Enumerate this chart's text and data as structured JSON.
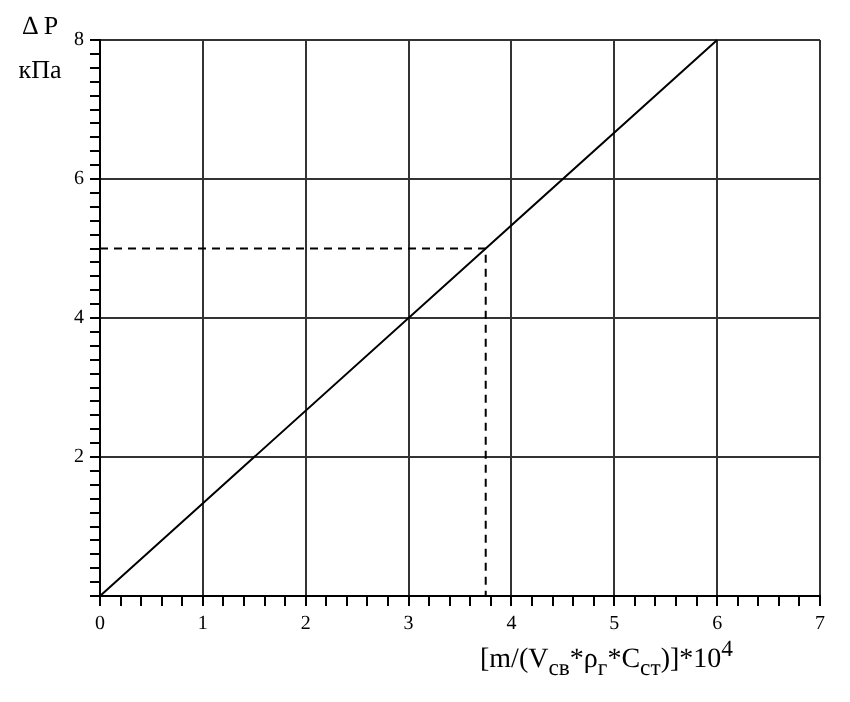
{
  "chart_data": {
    "type": "line",
    "xlabel": "[m/(V$_{св}$*ρ$_{г}$*C$_{ст}$)]*10$^{4}$",
    "ylabel": "Δ P кПа",
    "x": [
      0,
      3.75,
      3.75,
      6
    ],
    "series": [
      {
        "color": "#000000",
        "values": [
          0,
          5,
          5,
          8
        ]
      },
      {
        "color": "#000000",
        "values": [
          5,
          5,
          0,
          null
        ],
        "line_style": "dashed"
      }
    ],
    "xlim": [
      0,
      7
    ],
    "ylim": [
      0,
      8
    ],
    "xticks": [
      0,
      {
        "value": 0.2,
        "label": null
      },
      {
        "value": 0.4,
        "label": null
      },
      {
        "value": 0.6,
        "label": null
      },
      {
        "value": 0.8,
        "label": null
      },
      1,
      {
        "value": 1.2,
        "label": null
      },
      {
        "value": 1.4,
        "label": null
      },
      {
        "value": 1.6,
        "label": null
      },
      {
        "value": 1.8,
        "label": null
      },
      2,
      {
        "value": 2.2,
        "label": null
      },
      {
        "value": 2.4,
        "label": null
      },
      {
        "value": 2.6,
        "label": null
      },
      {
        "value": 2.8,
        "label": null
      },
      3,
      {
        "value": 3.2,
        "label": null
      },
      {
        "value": 3.4,
        "label": null
      },
      {
        "value": 3.6,
        "label": null
      },
      {
        "value": 3.8,
        "label": null
      },
      4,
      {
        "value": 4.2,
        "label": null
      },
      {
        "value": 4.4,
        "label": null
      },
      {
        "value": 4.6,
        "label": null
      },
      {
        "value": 4.8,
        "label": null
      },
      5,
      {
        "value": 5.2,
        "label": null
      },
      {
        "value": 5.4,
        "label": null
      },
      {
        "value": 5.6,
        "label": null
      },
      {
        "value": 5.8,
        "label": null
      },
      6,
      {
        "value": 6.2,
        "label": null
      },
      {
        "value": 6.4,
        "label": null
      },
      {
        "value": 6.6,
        "label": null
      },
      {
        "value": 6.8,
        "label": null
      },
      7
    ],
    "yticks": [
      {
        "value": 0,
        "label": null
      },
      {
        "value": 0.2,
        "label": null
      },
      {
        "value": 0.4,
        "label": null
      },
      {
        "value": 0.6,
        "label": null
      },
      {
        "value": 0.8,
        "label": null
      },
      {
        "value": 1,
        "label": null
      },
      {
        "value": 1.2,
        "label": null
      },
      {
        "value": 1.4,
        "label": null
      },
      {
        "value": 1.6,
        "label": null
      },
      {
        "value": 1.8,
        "label": null
      },
      2,
      {
        "value": 2.2,
        "label": null
      },
      {
        "value": 2.4,
        "label": null
      },
      {
        "value": 2.6,
        "label": null
      },
      {
        "value": 2.8,
        "label": null
      },
      {
        "value": 3,
        "label": null
      },
      {
        "value": 3.2,
        "label": null
      },
      {
        "value": 3.4,
        "label": null
      },
      {
        "value": 3.6,
        "label": null
      },
      {
        "value": 3.8,
        "label": null
      },
      4,
      {
        "value": 4.2,
        "label": null
      },
      {
        "value": 4.4,
        "label": null
      },
      {
        "value": 4.6,
        "label": null
      },
      {
        "value": 4.8,
        "label": null
      },
      {
        "value": 5,
        "label": null
      },
      {
        "value": 5.2,
        "label": null
      },
      {
        "value": 5.4,
        "label": null
      },
      {
        "value": 5.6,
        "label": null
      },
      {
        "value": 5.8,
        "label": null
      },
      6,
      {
        "value": 6.2,
        "label": null
      },
      {
        "value": 6.4,
        "label": null
      },
      {
        "value": 6.6,
        "label": null
      },
      {
        "value": 6.8,
        "label": null
      },
      {
        "value": 7,
        "label": null
      },
      {
        "value": 7.2,
        "label": null
      },
      {
        "value": 7.4,
        "label": null
      },
      {
        "value": 7.6,
        "label": null
      },
      {
        "value": 7.8,
        "label": null
      },
      8
    ],
    "grid": true,
    "marker": "none",
    "legend": false
  }
}
